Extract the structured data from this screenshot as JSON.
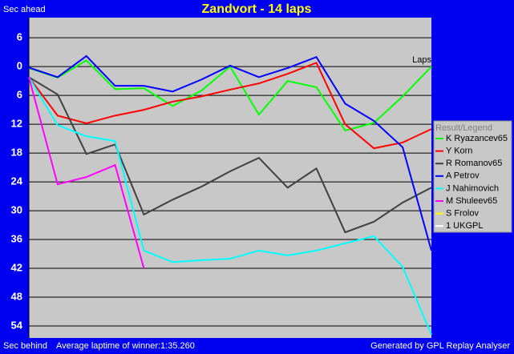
{
  "chart_data": {
    "type": "line",
    "title": "Zandvort - 14 laps",
    "y_label_top": "Sec ahead",
    "y_label_bottom": "Sec behind",
    "x_label": "Laps",
    "footer_left": "Average laptime of winner:1:35.260",
    "footer_right": "Generated by GPL Replay Analyser",
    "legend_title": "Result/Legend",
    "y_inverted": true,
    "grid": true,
    "x": [
      0,
      1,
      2,
      3,
      4,
      5,
      6,
      7,
      8,
      9,
      10,
      11,
      12,
      13,
      14
    ],
    "xlim": [
      0,
      14
    ],
    "ylim": [
      -10.2,
      56.5
    ],
    "yticks": [
      {
        "value": -6,
        "label": "6"
      },
      0,
      6,
      12,
      18,
      24,
      30,
      36,
      42,
      48,
      54
    ],
    "series": [
      {
        "name": "K Ryazancev65",
        "color": "#00ff00",
        "values": [
          0.3,
          2.3,
          -1.3,
          4.7,
          4.5,
          8.2,
          5,
          0,
          10,
          3,
          4.3,
          13.3,
          11.7,
          6.2,
          0
        ]
      },
      {
        "name": "Y Korn",
        "color": "#ff0000",
        "values": [
          2.2,
          10.2,
          11.8,
          10.2,
          9,
          7.3,
          6.2,
          4.8,
          3.5,
          1.5,
          -0.8,
          12,
          17,
          15.8,
          13
        ]
      },
      {
        "name": "R Romanov65",
        "color": "#404040",
        "values": [
          2.2,
          5.8,
          18.2,
          16.2,
          30.8,
          27.7,
          25,
          21.8,
          19,
          25.2,
          21.2,
          34.5,
          32.3,
          28.3,
          25.2
        ]
      },
      {
        "name": "A Petrov",
        "color": "#0000ff",
        "values": [
          0.2,
          2.2,
          -2.2,
          4,
          4,
          5.2,
          2.7,
          -0.2,
          2.2,
          0.3,
          -2,
          7.7,
          11.3,
          16.8,
          38.3
        ]
      },
      {
        "name": "J Nahimovich",
        "color": "#00ffff",
        "values": [
          2.2,
          12.2,
          14.5,
          15.5,
          38.3,
          40.7,
          40.3,
          40,
          38.3,
          39.3,
          38.3,
          36.8,
          35.3,
          41.7,
          55.8
        ]
      },
      {
        "name": "M Shuleev65",
        "color": "#ff00ff",
        "values": [
          2.2,
          24.5,
          23,
          20.5,
          42,
          null,
          null,
          null,
          null,
          null,
          null,
          null,
          null,
          null,
          null
        ]
      },
      {
        "name": "S Frolov",
        "color": "#ffff00",
        "values": [
          null,
          null,
          null,
          null,
          null,
          null,
          null,
          null,
          null,
          null,
          null,
          null,
          null,
          null,
          null
        ]
      },
      {
        "name": "1 UKGPL",
        "color": "#ffffff",
        "values": [
          null,
          null,
          null,
          null,
          null,
          null,
          null,
          null,
          null,
          null,
          null,
          null,
          null,
          null,
          null
        ]
      }
    ]
  }
}
